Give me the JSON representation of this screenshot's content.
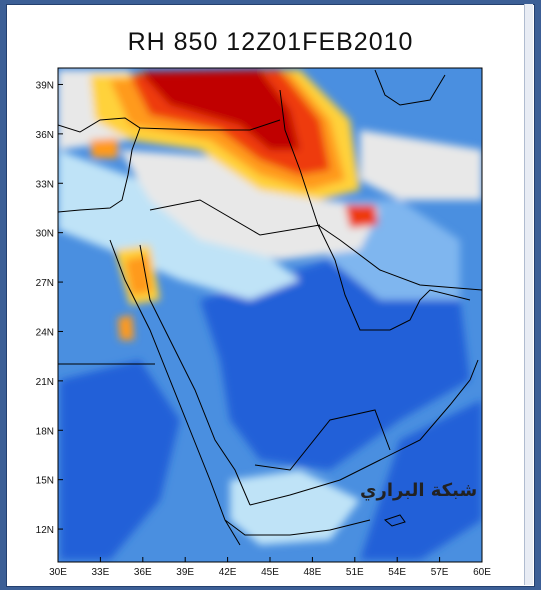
{
  "title": "RH 850 12Z01FEB2010",
  "watermark": "شبكة البراري",
  "map": {
    "lon_labels": [
      "30E",
      "33E",
      "36E",
      "39E",
      "42E",
      "45E",
      "48E",
      "51E",
      "54E",
      "57E",
      "60E"
    ],
    "lat_labels": [
      "39N",
      "36N",
      "33N",
      "30N",
      "27N",
      "24N",
      "21N",
      "18N",
      "15N",
      "12N"
    ],
    "lon_range": [
      30,
      60
    ],
    "lat_range": [
      10,
      40
    ],
    "variable": "RH",
    "level": "850",
    "colors": {
      "very_dry": "#c00000",
      "dry": "#ee3a10",
      "dry_mid": "#ff9a1a",
      "dry_low": "#ffd23a",
      "neutral": "#e8e8e8",
      "moist_low": "#bfe3f7",
      "moist": "#7fb6ef",
      "moist_high": "#4a8fe0",
      "very_moist": "#2260d8"
    }
  }
}
